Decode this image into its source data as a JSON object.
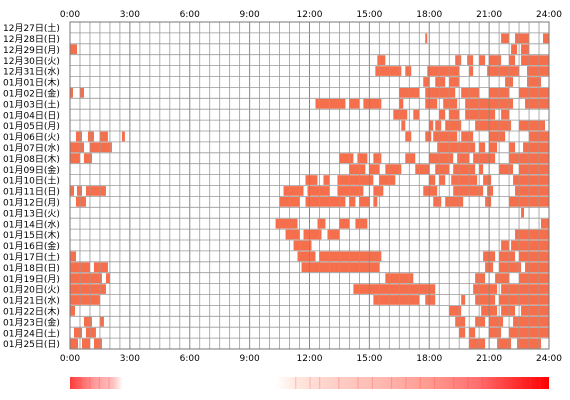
{
  "chart_data": {
    "type": "heatmap",
    "title": "",
    "xlabel": "",
    "ylabel": "",
    "x_ticks": [
      "0:00",
      "3:00",
      "6:00",
      "9:00",
      "12:00",
      "15:00",
      "18:00",
      "21:00",
      "24:00"
    ],
    "x_range_hours": [
      0,
      24
    ],
    "grid": true,
    "bar_color": "#f56f4c",
    "colorbar_gradient": [
      "#ff3a3a",
      "#ffffff",
      "#ff6060",
      "#ff0000"
    ],
    "rows": [
      {
        "label": "12月27日(土)",
        "intervals": []
      },
      {
        "label": "12月28日(日)",
        "intervals": [
          [
            17.8,
            17.9
          ],
          [
            21.6,
            22.0
          ],
          [
            22.3,
            23.0
          ],
          [
            23.7,
            24.0
          ]
        ]
      },
      {
        "label": "12月29日(月)",
        "intervals": [
          [
            0.0,
            0.35
          ],
          [
            22.1,
            22.4
          ],
          [
            22.6,
            23.0
          ]
        ]
      },
      {
        "label": "12月30日(火)",
        "intervals": [
          [
            15.4,
            15.8
          ],
          [
            19.3,
            19.6
          ],
          [
            19.9,
            20.2
          ],
          [
            20.5,
            20.8
          ],
          [
            21.0,
            21.6
          ],
          [
            22.0,
            22.3
          ],
          [
            22.6,
            24.0
          ]
        ]
      },
      {
        "label": "12月31日(水)",
        "intervals": [
          [
            15.3,
            16.6
          ],
          [
            16.8,
            17.1
          ],
          [
            17.9,
            19.5
          ],
          [
            20.0,
            20.2
          ],
          [
            20.9,
            22.5
          ],
          [
            22.9,
            24.0
          ]
        ]
      },
      {
        "label": "01月01日(木)",
        "intervals": [
          [
            17.7,
            18.0
          ],
          [
            18.3,
            18.8
          ],
          [
            19.0,
            19.5
          ],
          [
            21.8,
            22.2
          ],
          [
            22.9,
            23.6
          ]
        ]
      },
      {
        "label": "01月02日(金)",
        "intervals": [
          [
            0.0,
            0.15
          ],
          [
            0.5,
            0.7
          ],
          [
            16.5,
            17.5
          ],
          [
            17.8,
            19.3
          ],
          [
            19.6,
            20.5
          ],
          [
            21.0,
            22.0
          ],
          [
            22.5,
            24.0
          ]
        ]
      },
      {
        "label": "01月03日(土)",
        "intervals": [
          [
            12.3,
            13.8
          ],
          [
            14.0,
            14.5
          ],
          [
            14.7,
            15.6
          ],
          [
            16.5,
            16.7
          ],
          [
            17.8,
            18.4
          ],
          [
            18.7,
            19.4
          ],
          [
            19.8,
            22.2
          ],
          [
            22.8,
            24.0
          ]
        ]
      },
      {
        "label": "01月04日(日)",
        "intervals": [
          [
            16.2,
            16.9
          ],
          [
            17.2,
            17.5
          ],
          [
            18.5,
            18.8
          ],
          [
            19.0,
            19.5
          ],
          [
            19.8,
            21.3
          ],
          [
            21.6,
            22.0
          ]
        ]
      },
      {
        "label": "01月05日(月)",
        "intervals": [
          [
            16.6,
            16.8
          ],
          [
            18.0,
            18.2
          ],
          [
            18.3,
            18.6
          ],
          [
            18.8,
            19.6
          ],
          [
            20.3,
            22.1
          ],
          [
            22.5,
            23.8
          ]
        ]
      },
      {
        "label": "01月06日(火)",
        "intervals": [
          [
            0.3,
            0.6
          ],
          [
            0.9,
            1.2
          ],
          [
            1.5,
            1.9
          ],
          [
            2.6,
            2.75
          ],
          [
            16.8,
            17.1
          ],
          [
            17.8,
            18.1
          ],
          [
            18.2,
            19.4
          ],
          [
            19.6,
            20.2
          ],
          [
            21.0,
            21.8
          ],
          [
            23.0,
            24.0
          ]
        ]
      },
      {
        "label": "01月07日(水)",
        "intervals": [
          [
            0.0,
            0.7
          ],
          [
            1.0,
            2.1
          ],
          [
            18.4,
            20.3
          ],
          [
            20.5,
            20.8
          ],
          [
            21.0,
            21.4
          ],
          [
            22.0,
            22.3
          ],
          [
            22.7,
            24.0
          ]
        ]
      },
      {
        "label": "01月08日(木)",
        "intervals": [
          [
            0.0,
            0.5
          ],
          [
            0.7,
            1.1
          ],
          [
            13.5,
            14.2
          ],
          [
            14.4,
            14.9
          ],
          [
            15.2,
            15.6
          ],
          [
            16.8,
            17.3
          ],
          [
            18.0,
            19.2
          ],
          [
            19.4,
            20.0
          ],
          [
            20.2,
            21.3
          ],
          [
            22.0,
            24.0
          ]
        ]
      },
      {
        "label": "01月09日(金)",
        "intervals": [
          [
            14.0,
            14.8
          ],
          [
            15.0,
            15.5
          ],
          [
            15.8,
            16.6
          ],
          [
            17.3,
            18.0
          ],
          [
            18.3,
            19.0
          ],
          [
            19.2,
            20.3
          ],
          [
            20.5,
            20.7
          ],
          [
            21.5,
            22.2
          ],
          [
            22.5,
            24.0
          ]
        ]
      },
      {
        "label": "01月10日(土)",
        "intervals": [
          [
            11.8,
            12.4
          ],
          [
            12.7,
            13.0
          ],
          [
            13.4,
            15.2
          ],
          [
            15.5,
            16.3
          ],
          [
            18.0,
            18.3
          ],
          [
            18.5,
            18.8
          ],
          [
            19.1,
            20.4
          ],
          [
            20.7,
            21.1
          ],
          [
            22.2,
            24.0
          ]
        ]
      },
      {
        "label": "01月11日(日)",
        "intervals": [
          [
            0.0,
            0.2
          ],
          [
            0.35,
            0.6
          ],
          [
            0.8,
            1.8
          ],
          [
            10.7,
            11.7
          ],
          [
            11.9,
            13.0
          ],
          [
            13.4,
            14.7
          ],
          [
            15.2,
            15.7
          ],
          [
            17.7,
            18.4
          ],
          [
            19.2,
            20.7
          ],
          [
            20.9,
            21.2
          ],
          [
            22.3,
            24.0
          ]
        ]
      },
      {
        "label": "01月12日(月)",
        "intervals": [
          [
            0.3,
            0.8
          ],
          [
            10.5,
            11.5
          ],
          [
            11.8,
            13.8
          ],
          [
            14.0,
            14.3
          ],
          [
            14.5,
            15.0
          ],
          [
            15.2,
            15.4
          ],
          [
            18.2,
            18.6
          ],
          [
            18.8,
            19.7
          ],
          [
            20.8,
            21.1
          ],
          [
            22.0,
            24.0
          ]
        ]
      },
      {
        "label": "01月13日(火)",
        "intervals": [
          [
            22.6,
            22.75
          ]
        ]
      },
      {
        "label": "01月14日(水)",
        "intervals": [
          [
            10.3,
            11.4
          ],
          [
            12.4,
            12.8
          ],
          [
            13.5,
            14.0
          ],
          [
            14.3,
            14.9
          ],
          [
            23.6,
            24.0
          ]
        ]
      },
      {
        "label": "01月15日(木)",
        "intervals": [
          [
            10.8,
            11.5
          ],
          [
            11.7,
            12.6
          ],
          [
            12.9,
            13.5
          ],
          [
            22.3,
            24.0
          ]
        ]
      },
      {
        "label": "01月16日(金)",
        "intervals": [
          [
            11.2,
            12.1
          ],
          [
            21.6,
            22.0
          ],
          [
            22.1,
            24.0
          ]
        ]
      },
      {
        "label": "01月17日(土)",
        "intervals": [
          [
            0.0,
            0.3
          ],
          [
            11.4,
            12.3
          ],
          [
            12.5,
            15.6
          ],
          [
            20.7,
            21.3
          ],
          [
            21.5,
            22.3
          ],
          [
            22.5,
            24.0
          ]
        ]
      },
      {
        "label": "01月18日(日)",
        "intervals": [
          [
            0.0,
            1.0
          ],
          [
            1.2,
            1.9
          ],
          [
            11.6,
            15.5
          ],
          [
            20.8,
            21.2
          ],
          [
            21.5,
            22.6
          ],
          [
            22.8,
            24.0
          ]
        ]
      },
      {
        "label": "01月19日(月)",
        "intervals": [
          [
            0.0,
            1.6
          ],
          [
            1.8,
            2.0
          ],
          [
            15.8,
            17.2
          ],
          [
            20.3,
            20.8
          ],
          [
            21.3,
            22.0
          ],
          [
            22.5,
            24.0
          ]
        ]
      },
      {
        "label": "01月20日(火)",
        "intervals": [
          [
            0.0,
            1.8
          ],
          [
            14.2,
            18.3
          ],
          [
            20.2,
            21.4
          ],
          [
            21.6,
            24.0
          ]
        ]
      },
      {
        "label": "01月21日(水)",
        "intervals": [
          [
            0.0,
            1.5
          ],
          [
            15.2,
            17.5
          ],
          [
            17.8,
            18.3
          ],
          [
            19.6,
            19.8
          ],
          [
            20.3,
            21.3
          ],
          [
            21.5,
            24.0
          ]
        ]
      },
      {
        "label": "01月22日(木)",
        "intervals": [
          [
            0.0,
            0.25
          ],
          [
            19.0,
            19.6
          ],
          [
            20.6,
            21.4
          ],
          [
            21.6,
            22.3
          ],
          [
            22.6,
            24.0
          ]
        ]
      },
      {
        "label": "01月23日(金)",
        "intervals": [
          [
            0.7,
            1.1
          ],
          [
            1.5,
            1.7
          ],
          [
            19.3,
            19.8
          ],
          [
            20.3,
            20.8
          ],
          [
            21.0,
            21.7
          ],
          [
            22.2,
            24.0
          ]
        ]
      },
      {
        "label": "01月24日(土)",
        "intervals": [
          [
            0.2,
            0.6
          ],
          [
            0.8,
            1.3
          ],
          [
            19.5,
            19.8
          ],
          [
            20.0,
            20.3
          ],
          [
            21.0,
            21.6
          ],
          [
            22.0,
            24.0
          ]
        ]
      },
      {
        "label": "01月25日(日)",
        "intervals": [
          [
            0.0,
            0.4
          ],
          [
            0.6,
            1.0
          ],
          [
            1.2,
            1.6
          ],
          [
            20.0,
            20.8
          ],
          [
            21.4,
            22.1
          ],
          [
            22.4,
            23.6
          ]
        ]
      }
    ]
  }
}
